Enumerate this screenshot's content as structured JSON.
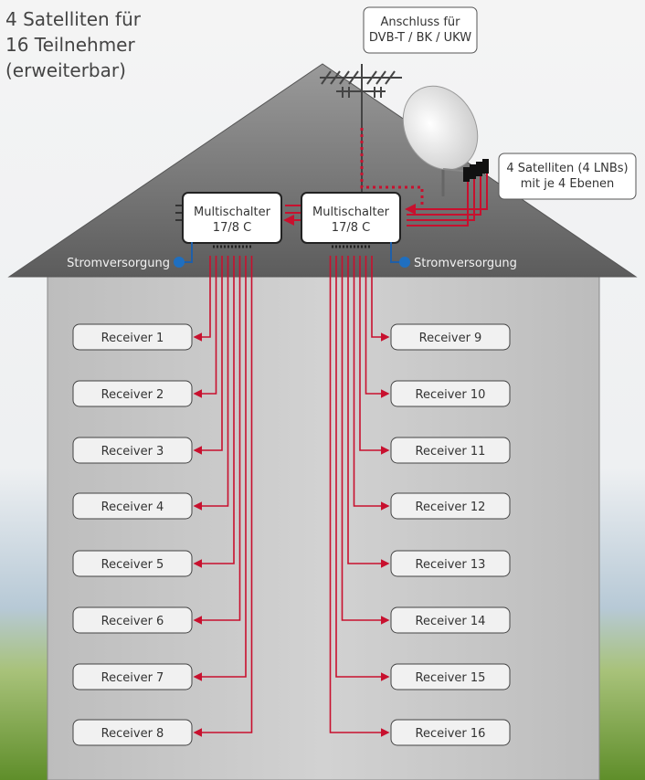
{
  "title": [
    "4 Satelliten für",
    "16 Teilnehmer",
    "(erweiterbar)"
  ],
  "antenna_callout": [
    "Anschluss für",
    "DVB-T / BK / UKW"
  ],
  "lnb_callout": [
    "4 Satelliten (4 LNBs)",
    "mit je 4 Ebenen"
  ],
  "switches": [
    {
      "label": [
        "Multischalter",
        "17/8 C"
      ]
    },
    {
      "label": [
        "Multischalter",
        "17/8 C"
      ]
    }
  ],
  "power": [
    "Stromversorgung",
    "Stromversorgung"
  ],
  "receivers_left": [
    "Receiver 1",
    "Receiver 2",
    "Receiver 3",
    "Receiver 4",
    "Receiver 5",
    "Receiver 6",
    "Receiver 7",
    "Receiver 8"
  ],
  "receivers_right": [
    "Receiver 9",
    "Receiver 10",
    "Receiver 11",
    "Receiver 12",
    "Receiver 13",
    "Receiver 14",
    "Receiver 15",
    "Receiver 16"
  ]
}
